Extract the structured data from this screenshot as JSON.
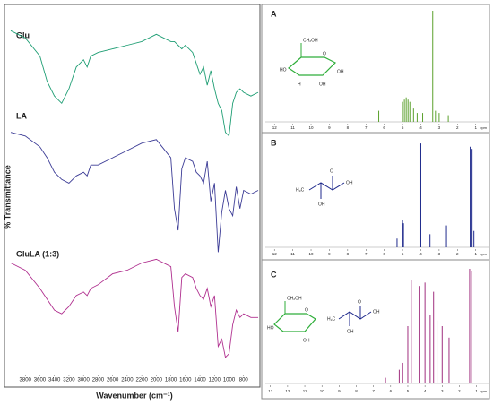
{
  "chart_data": [
    {
      "type": "line",
      "ylabel": "% Transmittance",
      "xlabel": "Wavenumber (cm⁻¹)",
      "x": [
        4000,
        3800,
        3600,
        3500,
        3400,
        3300,
        3200,
        3100,
        3000,
        2950,
        2900,
        2800,
        2600,
        2400,
        2200,
        2000,
        1800,
        1750,
        1700,
        1650,
        1600,
        1500,
        1450,
        1400,
        1350,
        1300,
        1250,
        1200,
        1150,
        1100,
        1050,
        1000,
        950,
        900,
        850,
        800,
        700,
        600
      ],
      "xlim": [
        4000,
        600
      ],
      "ylim": [
        0,
        100
      ],
      "xticks": [
        3800,
        3600,
        3400,
        3200,
        3000,
        2800,
        2600,
        2400,
        2200,
        2000,
        1800,
        1600,
        1400,
        1200,
        1000,
        800
      ],
      "series": [
        {
          "name": "Glu",
          "color": "#1f9e74",
          "values": [
            94,
            92,
            87,
            80,
            76,
            74,
            78,
            84,
            86,
            84,
            87,
            88,
            89,
            90,
            91,
            93,
            91,
            91,
            90,
            89,
            90,
            88,
            85,
            82,
            84,
            79,
            83,
            78,
            74,
            72,
            66,
            65,
            74,
            77,
            78,
            77,
            76,
            77
          ]
        },
        {
          "name": "LA",
          "color": "#3c3c96",
          "values": [
            66,
            65,
            62,
            59,
            55,
            53,
            52,
            54,
            55,
            54,
            57,
            57,
            59,
            61,
            63,
            64,
            59,
            45,
            39,
            56,
            59,
            58,
            55,
            54,
            52,
            58,
            47,
            52,
            33,
            44,
            50,
            45,
            43,
            51,
            45,
            50,
            49,
            50
          ]
        },
        {
          "name": "GluLA (1:3)",
          "color": "#b0308f",
          "values": [
            30,
            28,
            23,
            20,
            17,
            16,
            18,
            21,
            22,
            21,
            23,
            24,
            27,
            28,
            30,
            31,
            29,
            18,
            11,
            26,
            27,
            26,
            23,
            21,
            20,
            23,
            18,
            21,
            7,
            9,
            4,
            5,
            13,
            17,
            15,
            16,
            15,
            15
          ]
        }
      ]
    },
    {
      "type": "stem",
      "label": "A",
      "xlabel": "ppm",
      "color": "#5aa02c",
      "x": [
        6.3,
        5.0,
        4.9,
        4.8,
        4.7,
        4.6,
        4.4,
        4.2,
        3.9,
        3.35,
        3.2,
        3.0,
        2.5
      ],
      "values": [
        10,
        18,
        20,
        22,
        20,
        18,
        12,
        8,
        8,
        100,
        10,
        8,
        6
      ],
      "xlim": [
        12.5,
        0.3
      ],
      "ylim": [
        0,
        100
      ],
      "xticks": [
        12,
        11,
        10,
        9,
        8,
        7,
        6,
        5,
        4,
        3,
        2,
        1
      ],
      "annotations": [
        "CH₂OH",
        "O",
        "OH",
        "HO",
        "OH",
        "H"
      ]
    },
    {
      "type": "stem",
      "label": "B",
      "xlabel": "ppm",
      "color": "#1f2a8c",
      "x": [
        5.3,
        5.0,
        4.95,
        4.0,
        3.5,
        2.6,
        1.3,
        1.2,
        1.1
      ],
      "values": [
        8,
        25,
        22,
        95,
        12,
        20,
        92,
        90,
        15
      ],
      "xlim": [
        12.5,
        0.3
      ],
      "ylim": [
        0,
        100
      ],
      "xticks": [
        12,
        11,
        10,
        9,
        8,
        7,
        6,
        5,
        4,
        3,
        2,
        1
      ],
      "annotations": [
        "H₃C",
        "OH",
        "O",
        "OH"
      ]
    },
    {
      "type": "stem",
      "label": "C",
      "xlabel": "ppm",
      "color": "#a0307f",
      "x": [
        6.3,
        5.5,
        5.3,
        5.0,
        4.8,
        4.3,
        4.0,
        3.7,
        3.5,
        3.3,
        3.0,
        2.6,
        1.4,
        1.3
      ],
      "values": [
        5,
        12,
        18,
        50,
        90,
        85,
        88,
        60,
        80,
        55,
        50,
        40,
        100,
        98
      ],
      "xlim": [
        13.3,
        0.3
      ],
      "ylim": [
        0,
        100
      ],
      "xticks": [
        13,
        12,
        11,
        10,
        9,
        8,
        7,
        6,
        5,
        4,
        3,
        2,
        1
      ],
      "annotations": [
        "CH₂OH",
        "O",
        "OH",
        "HO",
        "H₃C",
        "OH",
        "O",
        "OH"
      ]
    }
  ]
}
